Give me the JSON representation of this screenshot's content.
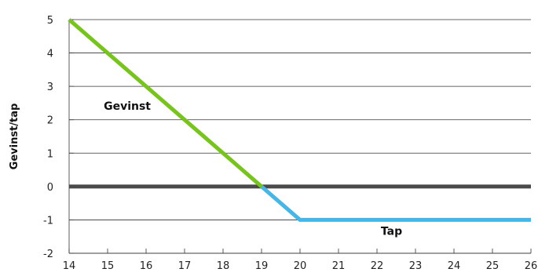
{
  "chart_data": {
    "type": "line",
    "title": "",
    "ylabel": "Gevinst/tap",
    "xlabel": "",
    "xlim": [
      14,
      26
    ],
    "ylim": [
      -2,
      5
    ],
    "x_ticks": [
      "14",
      "15",
      "16",
      "17",
      "18",
      "19",
      "20",
      "21",
      "22",
      "23",
      "24",
      "25",
      "26"
    ],
    "y_ticks": [
      "5",
      "4",
      "3",
      "2",
      "1",
      "0",
      "-1",
      "-2"
    ],
    "grid": {
      "horizontal": true,
      "vertical": false
    },
    "series": [
      {
        "name": "Gevinst",
        "color": "#76c41c",
        "x": [
          14,
          19
        ],
        "y": [
          5,
          0
        ]
      },
      {
        "name": "Tap",
        "color": "#46b6e6",
        "x": [
          19,
          20,
          26
        ],
        "y": [
          0,
          -1,
          -1
        ]
      }
    ],
    "zero_line_color": "#4a4a4a",
    "annotations": [
      {
        "text": "Gevinst",
        "x": 14.9,
        "y": 2.3
      },
      {
        "text": "Tap",
        "x": 22.1,
        "y": -1.45
      }
    ]
  }
}
